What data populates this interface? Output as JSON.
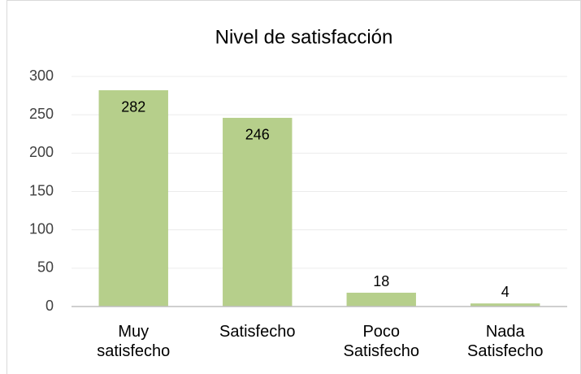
{
  "chart_data": {
    "type": "bar",
    "title": "Nivel de satisfacción",
    "categories": [
      "Muy satisfecho",
      "Satisfecho",
      "Poco Satisfecho",
      "Nada Satisfecho"
    ],
    "values": [
      282,
      246,
      18,
      4
    ],
    "color": "#b6cf8b",
    "ylim": [
      0,
      300
    ],
    "yticks": [
      0,
      50,
      100,
      150,
      200,
      250,
      300
    ],
    "grid": true
  }
}
